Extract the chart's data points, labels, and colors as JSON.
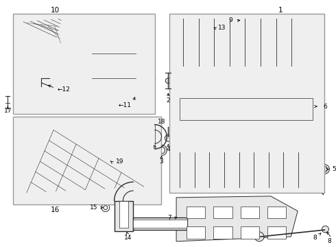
{
  "bg_color": "#ffffff",
  "fig_width": 4.9,
  "fig_height": 3.6,
  "dpi": 100,
  "line_color": "#2a2a2a",
  "fill_light": "#e8e8e8",
  "fill_mid": "#d0d0d0",
  "fill_dark": "#b8b8b8",
  "box_fill": "#efefef",
  "box_edge": "#888888"
}
